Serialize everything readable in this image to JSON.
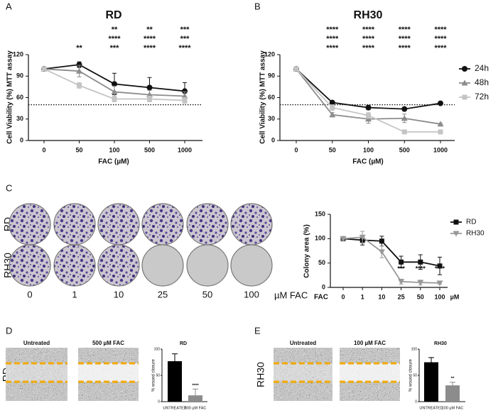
{
  "chart_data": [
    {
      "panel": "A",
      "type": "line",
      "title": "RD",
      "x_label": "FAC (µM)",
      "y_label": "Cell Viability (%) MTT assay",
      "categories": [
        "0",
        "50",
        "100",
        "500",
        "1000"
      ],
      "ylim": [
        0,
        120
      ],
      "yticks": [
        0,
        30,
        60,
        90,
        120
      ],
      "reference_line": 50,
      "series": [
        {
          "color": "#111111",
          "marker": "circle",
          "values": [
            100,
            106,
            79,
            74,
            69
          ],
          "errors": [
            2,
            4,
            15,
            14,
            12
          ],
          "stars": [
            null,
            null,
            "**",
            "**",
            "***"
          ]
        },
        {
          "color": "#8c8c8c",
          "marker": "triangle",
          "values": [
            100,
            97,
            68,
            64,
            62
          ],
          "errors": [
            2,
            8,
            8,
            6,
            6
          ],
          "stars": [
            null,
            null,
            "****",
            "****",
            "***"
          ]
        },
        {
          "color": "#c4c4c4",
          "marker": "square",
          "values": [
            100,
            77,
            58,
            58,
            56
          ],
          "errors": [
            1,
            4,
            4,
            4,
            4
          ],
          "stars": [
            null,
            "**",
            "***",
            "****",
            "****"
          ]
        }
      ]
    },
    {
      "panel": "B",
      "type": "line",
      "title": "RH30",
      "x_label": "FAC (µM)",
      "y_label": "Cell Viability (%) MTT assay",
      "categories": [
        "0",
        "50",
        "100",
        "500",
        "1000"
      ],
      "ylim": [
        0,
        120
      ],
      "yticks": [
        0,
        30,
        60,
        90,
        120
      ],
      "reference_line": 50,
      "legend": "right",
      "series": [
        {
          "name": "24h",
          "color": "#111111",
          "marker": "circle",
          "values": [
            100,
            53,
            46,
            44,
            52
          ],
          "errors": [
            2,
            2,
            3,
            2,
            2
          ],
          "stars": [
            null,
            "****",
            "****",
            "****",
            "****"
          ]
        },
        {
          "name": "48h",
          "color": "#8c8c8c",
          "marker": "triangle",
          "values": [
            100,
            36,
            30,
            31,
            23
          ],
          "errors": [
            2,
            3,
            6,
            6,
            1
          ],
          "stars": [
            null,
            "****",
            "****",
            "****",
            "****"
          ]
        },
        {
          "name": "72h",
          "color": "#c4c4c4",
          "marker": "square",
          "values": [
            100,
            46,
            35,
            12,
            12
          ],
          "errors": [
            2,
            4,
            4,
            2,
            2
          ],
          "stars": [
            null,
            "****",
            "****",
            "****",
            "****"
          ]
        }
      ]
    },
    {
      "panel": "C",
      "type": "line",
      "y_label": "Colony area (%)",
      "x_label": "FAC",
      "x_unit": "µM",
      "plate_rows": [
        "RD",
        "RH30"
      ],
      "dose_unit": "µM FAC",
      "categories": [
        "0",
        "1",
        "10",
        "25",
        "50",
        "100"
      ],
      "ylim": [
        0,
        150
      ],
      "yticks": [
        0,
        50,
        100,
        150
      ],
      "legend": "right",
      "stars": [
        null,
        null,
        null,
        "***",
        "****",
        "****"
      ],
      "series": [
        {
          "name": "RD",
          "color": "#111111",
          "marker": "square",
          "values": [
            100,
            97,
            95,
            52,
            52,
            44
          ],
          "errors": [
            3,
            10,
            10,
            12,
            15,
            18
          ]
        },
        {
          "name": "RH30",
          "color": "#999999",
          "marker": "triangle-down",
          "values": [
            100,
            103,
            73,
            12,
            10,
            9
          ],
          "errors": [
            3,
            12,
            12,
            5,
            5,
            2
          ]
        }
      ]
    },
    {
      "panel": "D",
      "type": "bar",
      "title": "RD",
      "row_label": "RD",
      "image_labels": [
        "Untreated",
        "500 µM FAC"
      ],
      "y_label": "% wound closure",
      "categories": [
        "UNTREATED",
        "500 µM FAC"
      ],
      "values": [
        77,
        12
      ],
      "errors": [
        14,
        12
      ],
      "colors": [
        "#000000",
        "#8c8c8c"
      ],
      "stars": [
        null,
        "****"
      ],
      "ylim": [
        0,
        100
      ],
      "yticks": [
        0,
        50,
        100
      ]
    },
    {
      "panel": "E",
      "type": "bar",
      "title": "RH30",
      "row_label": "RH30",
      "image_labels": [
        "Untreated",
        "100 µM FAC"
      ],
      "y_label": "% wound closure",
      "categories": [
        "UNTREATED",
        "100 µM FAC"
      ],
      "values": [
        75,
        31
      ],
      "errors": [
        9,
        6
      ],
      "colors": [
        "#000000",
        "#8c8c8c"
      ],
      "stars": [
        null,
        "**"
      ],
      "ylim": [
        0,
        100
      ],
      "yticks": [
        0,
        50,
        100
      ]
    }
  ]
}
